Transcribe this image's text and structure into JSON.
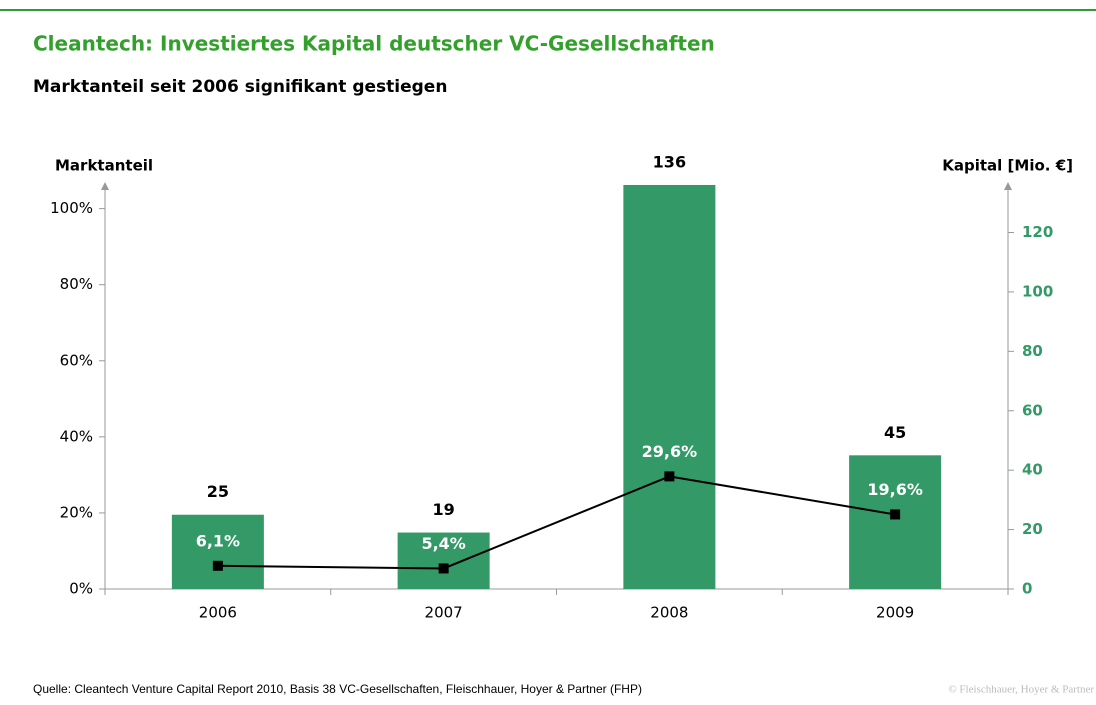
{
  "title": "Cleantech: Investiertes Kapital deutscher VC-Gesellschaften",
  "subtitle": "Marktanteil seit 2006 signifikant gestiegen",
  "source": "Quelle: Cleantech Venture Capital Report 2010, Basis 38 VC-Gesellschaften, Fleischhauer, Hoyer & Partner (FHP)",
  "copyright": "© Fleischhauer, Hoyer & Partner",
  "chart_data": {
    "type": "bar",
    "y_label": "Marktanteil",
    "y2_label": "Kapital [Mio. €]",
    "categories": [
      "2006",
      "2007",
      "2008",
      "2009"
    ],
    "series": [
      {
        "type": "bar",
        "axis": "y2",
        "color": "#339966",
        "values": [
          25,
          19,
          136,
          45
        ]
      },
      {
        "type": "line",
        "color": "#000000",
        "values": [
          6.1,
          5.4,
          29.6,
          19.6
        ],
        "value_labels": [
          "6,1%",
          "5,4%",
          "29,6%",
          "19,6%"
        ]
      }
    ],
    "ylim": [
      0,
      107
    ],
    "yticks": [
      {
        "value": 0,
        "label": "0%"
      },
      {
        "value": 20,
        "label": "20%"
      },
      {
        "value": 40,
        "label": "40%"
      },
      {
        "value": 60,
        "label": "60%"
      },
      {
        "value": 80,
        "label": "80%"
      },
      {
        "value": 100,
        "label": "100%"
      }
    ],
    "y2lim": [
      0,
      137
    ],
    "y2ticks": [
      0,
      20,
      40,
      60,
      80,
      100,
      120
    ]
  }
}
